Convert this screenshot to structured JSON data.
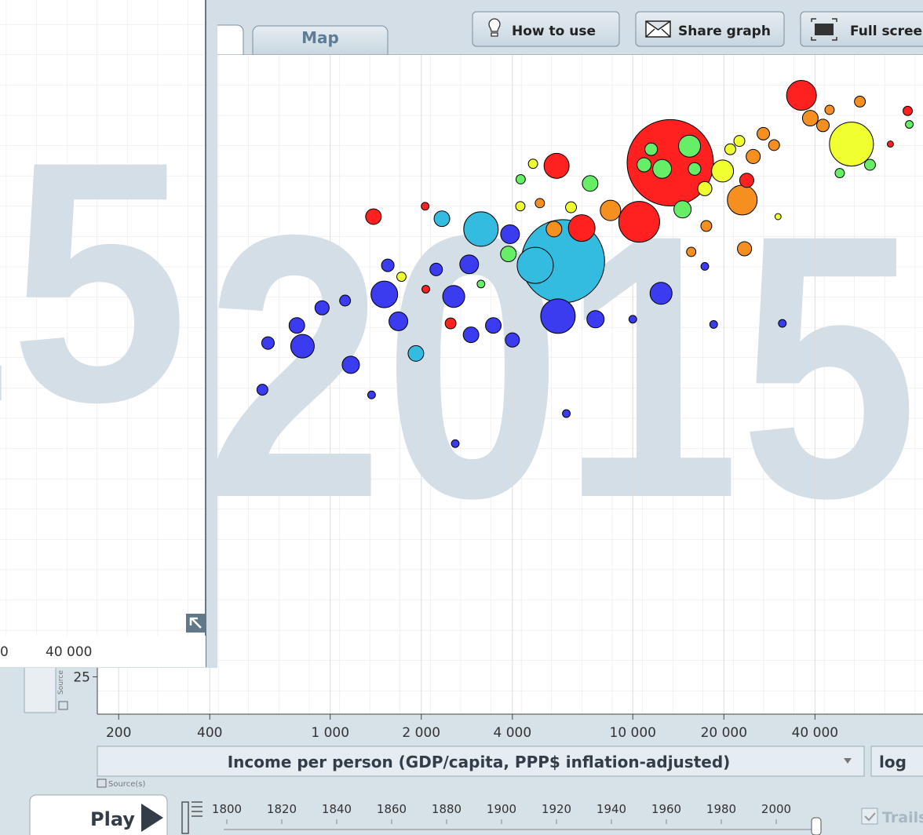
{
  "toolbar": {
    "tabs": [
      "Map"
    ],
    "buttons": [
      "How to use",
      "Share graph",
      "Full screen"
    ]
  },
  "overlay": {
    "year": "2015",
    "ticks": [
      "0",
      "40 000"
    ]
  },
  "chart_data": {
    "type": "scatter",
    "year": "2015",
    "x_label": "Income per person (GDP/capita, PPP$ inflation-adjusted)",
    "x_scale_button": "log",
    "x_source": "Source(s)",
    "y_source": "Source",
    "xscale": "log",
    "grid": true,
    "xlim": [
      170,
      91000
    ],
    "xticks": [
      200,
      400,
      {
        "value": 1000,
        "label": "1 000"
      },
      {
        "value": 2000,
        "label": "2 000"
      },
      {
        "value": 4000,
        "label": "4 000"
      },
      {
        "value": 10000,
        "label": "10 000"
      },
      {
        "value": 20000,
        "label": "20 000"
      },
      {
        "value": 40000,
        "label": "40 000"
      }
    ],
    "ylim": [
      21.4,
      85
    ],
    "yticks": [
      25
    ],
    "x": [
      13300,
      5880,
      52800,
      3150,
      4760,
      5660,
      10500,
      36100,
      15400,
      19800,
      23000,
      6780,
      5600,
      3930,
      810,
      623,
      597,
      8440,
      12400,
      7530,
      2560,
      2880,
      1510,
      1170,
      1680,
      1920,
      3460,
      4000,
      2920,
      1390,
      2340,
      4680,
      6030,
      2590,
      1370,
      940,
      1120,
      776,
      1550,
      2240,
      10000,
      18500,
      31200,
      23400,
      15600,
      17300,
      81000,
      56300,
      60800,
      48300,
      71000,
      14600,
      3880,
      4260,
      7230,
      5490,
      29300,
      27000,
      38600,
      42500,
      44700,
      25000,
      22500,
      21000,
      17500,
      30200,
      11500,
      10900,
      12500,
      16000,
      17300,
      23800,
      2500,
      3150,
      2070,
      1720,
      2060,
      4250,
      4930,
      6250,
      82000
    ],
    "values": [
      74.6,
      65.1,
      76.4,
      68.2,
      64.7,
      59.8,
      68.9,
      81.1,
      76.2,
      73.8,
      71,
      68.3,
      74.3,
      67.7,
      56.9,
      57.2,
      52.7,
      70,
      62,
      59.5,
      61.7,
      64.8,
      61.9,
      55.1,
      59.3,
      56.2,
      58.9,
      57.5,
      58,
      69.4,
      69.2,
      74.5,
      50.4,
      47.5,
      52.2,
      60.6,
      61.3,
      58.9,
      64.7,
      64.3,
      59.5,
      59,
      59.1,
      66.3,
      66,
      64.6,
      79.6,
      80.5,
      74.4,
      73.6,
      76.4,
      70.1,
      65.8,
      73,
      72.6,
      68.2,
      76.3,
      77.4,
      78.9,
      78.2,
      79.7,
      75.2,
      76.7,
      75.9,
      68.5,
      69.4,
      75.9,
      74.4,
      74,
      74,
      72.1,
      72.9,
      59.1,
      62.9,
      62.4,
      63.6,
      70.4,
      70.4,
      70.7,
      70.3,
      78.3
    ],
    "sizes": [
      1372,
      1274,
      356,
      219,
      240,
      219,
      307,
      164,
      89,
      89,
      164,
      131,
      116,
      65,
      102,
      29,
      22,
      77,
      89,
      55,
      89,
      65,
      131,
      55,
      65,
      45,
      45,
      37,
      45,
      45,
      45,
      16,
      11,
      11,
      11,
      37,
      22,
      45,
      29,
      29,
      11,
      11,
      11,
      37,
      16,
      11,
      16,
      22,
      22,
      16,
      7,
      55,
      45,
      16,
      45,
      45,
      22,
      29,
      45,
      29,
      16,
      37,
      22,
      22,
      22,
      7,
      29,
      37,
      65,
      29,
      37,
      37,
      22,
      11,
      11,
      16,
      11,
      16,
      16,
      22,
      11
    ],
    "colors": [
      "#ff2020",
      "#33bbe0",
      "#f0ff30",
      "#33bbe0",
      "#33bbe0",
      "#3b3bf0",
      "#ff2020",
      "#ff2020",
      "#66ee66",
      "#f0ff30",
      "#f59020",
      "#ff2020",
      "#ff2020",
      "#3b3bf0",
      "#3b3bf0",
      "#3b3bf0",
      "#3b3bf0",
      "#f59020",
      "#3b3bf0",
      "#3b3bf0",
      "#3b3bf0",
      "#3b3bf0",
      "#3b3bf0",
      "#3b3bf0",
      "#3b3bf0",
      "#33bbe0",
      "#3b3bf0",
      "#3b3bf0",
      "#3b3bf0",
      "#ff2020",
      "#33bbe0",
      "#f0ff30",
      "#3b3bf0",
      "#3b3bf0",
      "#3b3bf0",
      "#3b3bf0",
      "#3b3bf0",
      "#3b3bf0",
      "#3b3bf0",
      "#3b3bf0",
      "#3b3bf0",
      "#3b3bf0",
      "#3b3bf0",
      "#f59020",
      "#f59020",
      "#3b3bf0",
      "#ff2020",
      "#f59020",
      "#66ee66",
      "#66ee66",
      "#ff2020",
      "#66ee66",
      "#66ee66",
      "#66ee66",
      "#66ee66",
      "#f59020",
      "#f59020",
      "#f59020",
      "#f59020",
      "#f59020",
      "#f59020",
      "#f59020",
      "#f0ff30",
      "#f0ff30",
      "#f59020",
      "#f0ff30",
      "#66ee66",
      "#66ee66",
      "#66ee66",
      "#66ee66",
      "#f0ff30",
      "#ff2020",
      "#ff2020",
      "#66ee66",
      "#ff2020",
      "#f0ff30",
      "#ff2020",
      "#f0ff30",
      "#f59020",
      "#f0ff30",
      "#66ee66"
    ]
  },
  "timeline": {
    "play": "Play",
    "years": [
      "1800",
      "1820",
      "1840",
      "1860",
      "1880",
      "1900",
      "1920",
      "1940",
      "1960",
      "1980",
      "2000"
    ],
    "trails": "Trails"
  }
}
